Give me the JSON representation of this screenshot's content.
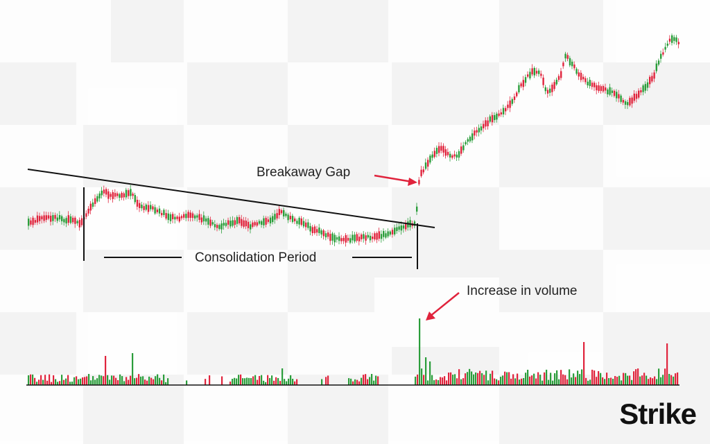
{
  "brand": {
    "logo_text": "Strike"
  },
  "annotations": {
    "breakaway_gap": "Breakaway Gap",
    "consolidation_period": "Consolidation Period",
    "increase_in_volume": "Increase in volume"
  },
  "colors": {
    "up": "#2a9d3a",
    "down": "#e0233c",
    "arrow": "#e0233c",
    "line": "#111111",
    "logo_accent": "#1f6bff"
  },
  "chart_data": {
    "type": "candlestick",
    "title": "",
    "xlabel": "",
    "ylabel": "",
    "grid": false,
    "price_path_description": "consolidation below descending trendline, breakaway gap up, uptrend with pullback",
    "price_ranges": {
      "consolidation_low": 350,
      "consolidation_high": 275,
      "post_gap_high": 50
    },
    "volume_spike_note": "volume spike at the breakaway gap"
  }
}
